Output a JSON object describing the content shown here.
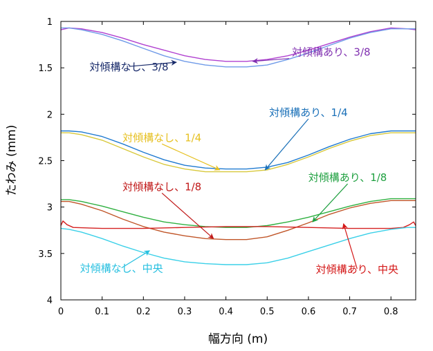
{
  "chart_data": {
    "type": "line",
    "xlabel": "幅方向 (m)",
    "ylabel": "たわみ (mm)",
    "xlim": [
      0,
      0.86
    ],
    "ylim": [
      1,
      4
    ],
    "y_inverted": true,
    "grid": false,
    "xticks": [
      "0",
      "0.1",
      "0.2",
      "0.3",
      "0.4",
      "0.5",
      "0.6",
      "0.7",
      "0.8"
    ],
    "yticks": [
      "1",
      "1.5",
      "2",
      "2.5",
      "3",
      "3.5",
      "4"
    ],
    "series": [
      {
        "name": "対傾構あり、3/8",
        "color": "#b040d0",
        "x": [
          0,
          0.02,
          0.05,
          0.1,
          0.15,
          0.2,
          0.25,
          0.3,
          0.35,
          0.4,
          0.43,
          0.45,
          0.5,
          0.55,
          0.6,
          0.65,
          0.7,
          0.75,
          0.8,
          0.84,
          0.86
        ],
        "y": [
          1.09,
          1.07,
          1.08,
          1.12,
          1.18,
          1.25,
          1.31,
          1.37,
          1.41,
          1.43,
          1.43,
          1.43,
          1.41,
          1.37,
          1.31,
          1.24,
          1.17,
          1.11,
          1.07,
          1.08,
          1.09
        ]
      },
      {
        "name": "対傾構なし、3/8",
        "color": "#6f9ae8",
        "x": [
          0,
          0.02,
          0.05,
          0.1,
          0.15,
          0.2,
          0.25,
          0.3,
          0.35,
          0.4,
          0.43,
          0.45,
          0.5,
          0.55,
          0.6,
          0.65,
          0.7,
          0.75,
          0.8,
          0.84,
          0.86
        ],
        "y": [
          1.07,
          1.07,
          1.09,
          1.14,
          1.21,
          1.29,
          1.37,
          1.43,
          1.47,
          1.49,
          1.49,
          1.49,
          1.47,
          1.41,
          1.34,
          1.26,
          1.18,
          1.12,
          1.08,
          1.08,
          1.08
        ]
      },
      {
        "name": "対傾構あり、1/4",
        "color": "#1f7ad0",
        "x": [
          0,
          0.02,
          0.05,
          0.1,
          0.15,
          0.2,
          0.25,
          0.3,
          0.35,
          0.4,
          0.43,
          0.45,
          0.5,
          0.55,
          0.6,
          0.65,
          0.7,
          0.75,
          0.8,
          0.84,
          0.86
        ],
        "y": [
          2.18,
          2.18,
          2.19,
          2.24,
          2.32,
          2.41,
          2.49,
          2.55,
          2.58,
          2.59,
          2.59,
          2.59,
          2.57,
          2.52,
          2.44,
          2.35,
          2.27,
          2.21,
          2.18,
          2.18,
          2.18
        ]
      },
      {
        "name": "対傾構なし、1/4",
        "color": "#d8c83a",
        "x": [
          0,
          0.02,
          0.05,
          0.1,
          0.15,
          0.2,
          0.25,
          0.3,
          0.35,
          0.4,
          0.43,
          0.45,
          0.5,
          0.55,
          0.6,
          0.65,
          0.7,
          0.75,
          0.8,
          0.84,
          0.86
        ],
        "y": [
          2.2,
          2.2,
          2.22,
          2.28,
          2.37,
          2.46,
          2.54,
          2.59,
          2.62,
          2.62,
          2.62,
          2.62,
          2.6,
          2.54,
          2.46,
          2.37,
          2.29,
          2.23,
          2.2,
          2.2,
          2.2
        ]
      },
      {
        "name": "対傾構あり、1/8",
        "color": "#2fb040",
        "x": [
          0,
          0.02,
          0.05,
          0.1,
          0.15,
          0.2,
          0.25,
          0.3,
          0.35,
          0.4,
          0.43,
          0.45,
          0.5,
          0.55,
          0.6,
          0.65,
          0.7,
          0.75,
          0.8,
          0.84,
          0.86
        ],
        "y": [
          2.92,
          2.92,
          2.94,
          2.99,
          3.05,
          3.11,
          3.16,
          3.19,
          3.21,
          3.22,
          3.22,
          3.22,
          3.2,
          3.16,
          3.11,
          3.05,
          2.99,
          2.94,
          2.91,
          2.91,
          2.91
        ]
      },
      {
        "name": "対傾構なし、1/8",
        "color": "#c05528",
        "x": [
          0,
          0.02,
          0.05,
          0.1,
          0.15,
          0.2,
          0.25,
          0.3,
          0.35,
          0.4,
          0.43,
          0.45,
          0.5,
          0.55,
          0.6,
          0.65,
          0.7,
          0.75,
          0.8,
          0.84,
          0.86
        ],
        "y": [
          2.94,
          2.94,
          2.97,
          3.04,
          3.13,
          3.21,
          3.27,
          3.31,
          3.34,
          3.35,
          3.35,
          3.35,
          3.32,
          3.25,
          3.17,
          3.08,
          3.01,
          2.96,
          2.93,
          2.93,
          2.93
        ]
      },
      {
        "name": "対傾構あり、中央",
        "color": "#d42020",
        "x": [
          0,
          0.005,
          0.015,
          0.03,
          0.1,
          0.2,
          0.3,
          0.4,
          0.43,
          0.5,
          0.6,
          0.7,
          0.8,
          0.83,
          0.845,
          0.855,
          0.86
        ],
        "y": [
          3.2,
          3.15,
          3.19,
          3.22,
          3.23,
          3.23,
          3.22,
          3.21,
          3.21,
          3.21,
          3.22,
          3.23,
          3.23,
          3.22,
          3.19,
          3.16,
          3.2
        ]
      },
      {
        "name": "対傾構なし、中央",
        "color": "#3ad0e8",
        "x": [
          0,
          0.02,
          0.05,
          0.1,
          0.15,
          0.2,
          0.25,
          0.3,
          0.35,
          0.4,
          0.43,
          0.45,
          0.5,
          0.55,
          0.6,
          0.65,
          0.7,
          0.75,
          0.8,
          0.84,
          0.86
        ],
        "y": [
          3.23,
          3.24,
          3.27,
          3.34,
          3.42,
          3.49,
          3.55,
          3.59,
          3.61,
          3.62,
          3.62,
          3.62,
          3.6,
          3.55,
          3.48,
          3.41,
          3.34,
          3.28,
          3.24,
          3.22,
          3.22
        ]
      }
    ],
    "annotations": [
      {
        "text": "対傾構あり、3/8",
        "color": "#8030b0",
        "anchor": "start",
        "tx": 0.56,
        "ty": 1.37,
        "ax": 0.465,
        "ay": 1.43
      },
      {
        "text": "対傾構なし、3/8",
        "color": "#182a6a",
        "anchor": "middle",
        "tx": 0.165,
        "ty": 1.53,
        "ax": 0.28,
        "ay": 1.44
      },
      {
        "text": "対傾構あり、1/4",
        "color": "#1a70b8",
        "anchor": "middle",
        "tx": 0.6,
        "ty": 2.02,
        "ax": 0.495,
        "ay": 2.6
      },
      {
        "text": "対傾構なし、1/4",
        "color": "#e6c020",
        "anchor": "middle",
        "tx": 0.245,
        "ty": 2.29,
        "ax": 0.385,
        "ay": 2.6
      },
      {
        "text": "対傾構あり、1/8",
        "color": "#1fa040",
        "anchor": "middle",
        "tx": 0.695,
        "ty": 2.72,
        "ax": 0.61,
        "ay": 3.16
      },
      {
        "text": "対傾構なし、1/8",
        "color": "#c01818",
        "anchor": "middle",
        "tx": 0.245,
        "ty": 2.82,
        "ax": 0.37,
        "ay": 3.34
      },
      {
        "text": "対傾構あり、中央",
        "color": "#d41818",
        "anchor": "middle",
        "tx": 0.718,
        "ty": 3.71,
        "ax": 0.685,
        "ay": 3.18
      },
      {
        "text": "対傾構なし、中央",
        "color": "#28c0e0",
        "anchor": "middle",
        "tx": 0.147,
        "ty": 3.7,
        "ax": 0.215,
        "ay": 3.47
      }
    ]
  }
}
